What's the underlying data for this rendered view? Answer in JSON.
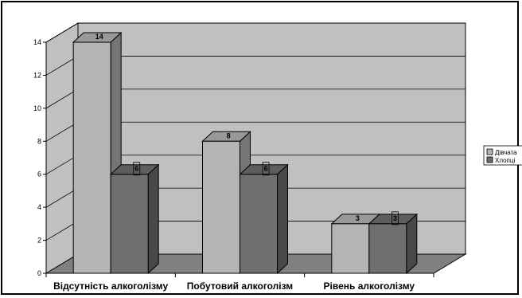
{
  "chart_data": {
    "type": "bar",
    "categories": [
      "Відсутність алкоголізму",
      "Побутовий алкоголізм",
      "Рівень алкоголізму"
    ],
    "series": [
      {
        "name": "Дівчата",
        "values": [
          14,
          8,
          3
        ],
        "color": "#b4b4b4",
        "label_boxed": [
          false,
          false,
          false
        ]
      },
      {
        "name": "Хлопці",
        "values": [
          6,
          6,
          3
        ],
        "color": "#6f6f6f",
        "label_boxed": [
          true,
          true,
          true
        ]
      }
    ],
    "yticks": [
      "0",
      "2",
      "4",
      "6",
      "8",
      "10",
      "12",
      "14"
    ],
    "ylim": [
      0,
      14
    ],
    "grid": true,
    "style": "3d-clustered-column",
    "legend": "right",
    "colors": {
      "wall": "#c0c0c0",
      "floor": "#808080",
      "grid": "#000000"
    }
  }
}
